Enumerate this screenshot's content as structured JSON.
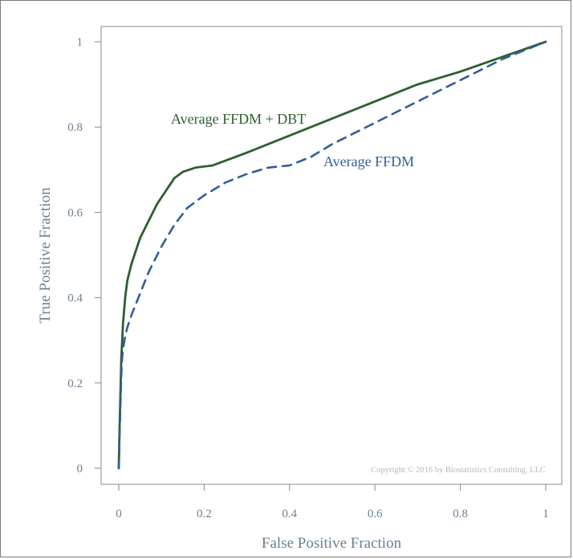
{
  "chart_data": {
    "type": "line",
    "title": "",
    "xlabel": "False Positive Fraction",
    "ylabel": "True Positive Fraction",
    "xlim": [
      0,
      1
    ],
    "ylim": [
      0,
      1
    ],
    "x_ticks": [
      0,
      0.2,
      0.4,
      0.6,
      0.8,
      1
    ],
    "x_tick_labels": [
      "0",
      "0.2",
      "0.4",
      "0.6",
      "0.8",
      "1"
    ],
    "y_ticks": [
      0,
      0.2,
      0.4,
      0.6,
      0.8,
      1
    ],
    "y_tick_labels": [
      "0",
      "0.2",
      "0.4",
      "0.6",
      "0.8",
      "1"
    ],
    "grid": false,
    "annotation": "Copyright © 2016 by Biostatistics Consulting, LLC",
    "series": [
      {
        "name": "Average FFDM + DBT",
        "style": "solid",
        "color": "#2e5e2e",
        "x": [
          0,
          0.002,
          0.004,
          0.006,
          0.008,
          0.01,
          0.015,
          0.02,
          0.03,
          0.04,
          0.05,
          0.07,
          0.09,
          0.11,
          0.13,
          0.15,
          0.18,
          0.22,
          0.3,
          0.4,
          0.5,
          0.6,
          0.7,
          0.8,
          0.9,
          1.0
        ],
        "y": [
          0,
          0.1,
          0.18,
          0.26,
          0.3,
          0.34,
          0.4,
          0.44,
          0.48,
          0.51,
          0.54,
          0.58,
          0.62,
          0.65,
          0.68,
          0.695,
          0.705,
          0.71,
          0.74,
          0.78,
          0.82,
          0.86,
          0.9,
          0.93,
          0.965,
          1.0
        ]
      },
      {
        "name": "Average FFDM",
        "style": "dashed",
        "color": "#2f5e99",
        "x": [
          0,
          0.002,
          0.004,
          0.006,
          0.008,
          0.01,
          0.015,
          0.02,
          0.03,
          0.05,
          0.07,
          0.1,
          0.13,
          0.16,
          0.2,
          0.25,
          0.3,
          0.35,
          0.4,
          0.45,
          0.5,
          0.6,
          0.7,
          0.8,
          0.9,
          1.0
        ],
        "y": [
          0,
          0.08,
          0.15,
          0.22,
          0.26,
          0.28,
          0.31,
          0.33,
          0.36,
          0.41,
          0.46,
          0.52,
          0.57,
          0.61,
          0.64,
          0.67,
          0.69,
          0.705,
          0.71,
          0.73,
          0.76,
          0.81,
          0.86,
          0.91,
          0.96,
          1.0
        ]
      }
    ]
  }
}
